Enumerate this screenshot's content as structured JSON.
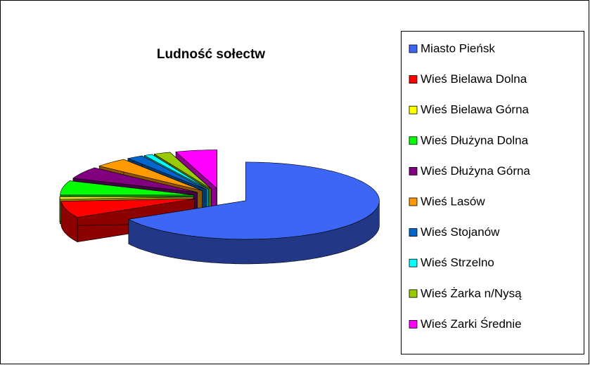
{
  "chart_data": {
    "type": "pie3d",
    "title": "Ludność sołectw",
    "categories": [
      "Miasto Pieńsk",
      "Wieś Bielawa Dolna",
      "Wieś Bielawa Górna",
      "Wieś Dłużyna Dolna",
      "Wieś Dłużyna Górna",
      "Wieś Lasów",
      "Wieś Stojanów",
      "Wieś Strzelno",
      "Wieś Żarka n/Nysą",
      "Wieś Zarki Średnie"
    ],
    "values": [
      67,
      7,
      1,
      6,
      5,
      4,
      2,
      1,
      2,
      5
    ],
    "colors": [
      "#3d66f5",
      "#ff0000",
      "#ffff00",
      "#00ff00",
      "#800080",
      "#ff9900",
      "#0066cc",
      "#00ffff",
      "#99cc00",
      "#ff00ff"
    ],
    "legend": "right"
  }
}
